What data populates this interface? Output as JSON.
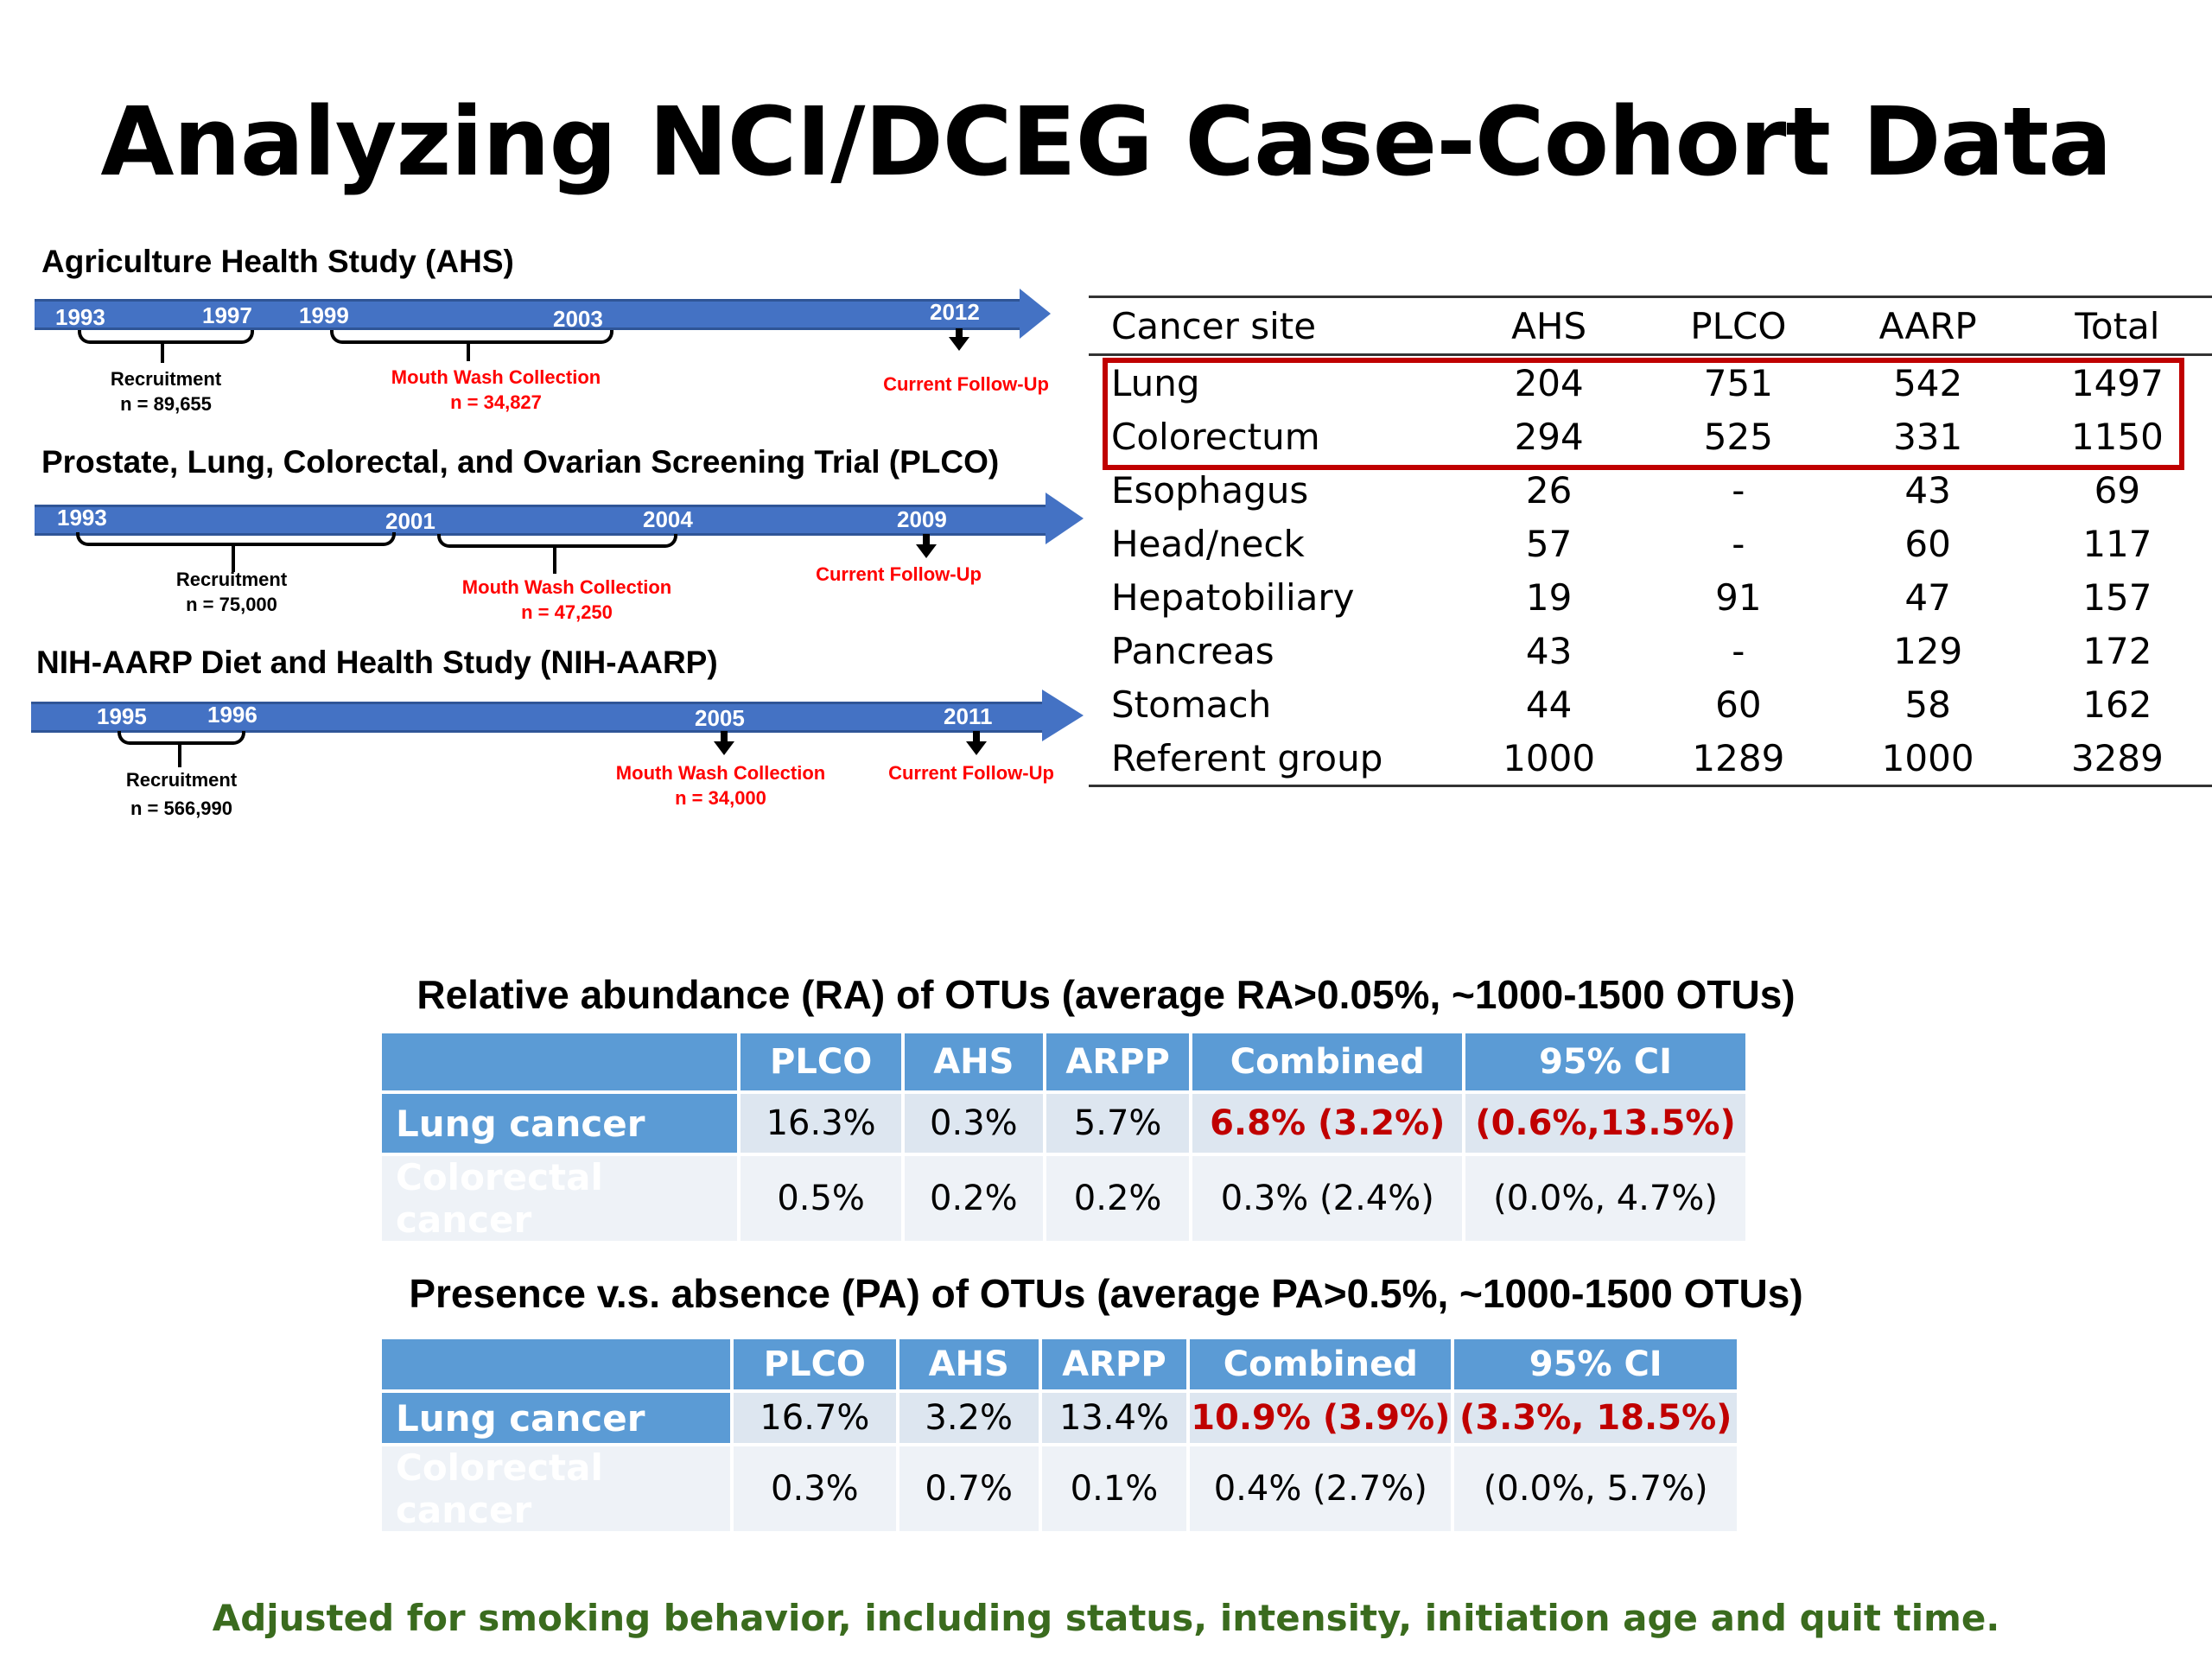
{
  "title": "Analyzing NCI/DCEG Case-Cohort Data",
  "studies": {
    "ahs": {
      "title": "Agriculture Health Study (AHS)",
      "years": [
        "1993",
        "1997",
        "1999",
        "2003",
        "2012"
      ],
      "recruitment": "Recruitment",
      "recruitment_n": "n = 89,655",
      "mouthwash": "Mouth Wash Collection",
      "mouthwash_n": "n = 34,827",
      "followup": "Current Follow-Up"
    },
    "plco": {
      "title": "Prostate, Lung, Colorectal, and Ovarian Screening Trial (PLCO)",
      "years": [
        "1993",
        "2001",
        "2004",
        "2009"
      ],
      "recruitment": "Recruitment",
      "recruitment_n": "n = 75,000",
      "mouthwash": "Mouth Wash Collection",
      "mouthwash_n": "n = 47,250",
      "followup": "Current Follow-Up"
    },
    "aarp": {
      "title": "NIH-AARP Diet and Health Study (NIH-AARP)",
      "years": [
        "1995",
        "1996",
        "2005",
        "2011"
      ],
      "recruitment": "Recruitment",
      "recruitment_n": "n = 566,990",
      "mouthwash": "Mouth Wash Collection",
      "mouthwash_n": "n = 34,000",
      "followup": "Current Follow-Up"
    }
  },
  "site_table": {
    "headers": [
      "Cancer site",
      "AHS",
      "PLCO",
      "AARP",
      "Total"
    ],
    "rows": [
      [
        "Lung",
        "204",
        "751",
        "542",
        "1497"
      ],
      [
        "Colorectum",
        "294",
        "525",
        "331",
        "1150"
      ],
      [
        "Esophagus",
        "26",
        "-",
        "43",
        "69"
      ],
      [
        "Head/neck",
        "57",
        "-",
        "60",
        "117"
      ],
      [
        "Hepatobiliary",
        "19",
        "91",
        "47",
        "157"
      ],
      [
        "Pancreas",
        "43",
        "-",
        "129",
        "172"
      ],
      [
        "Stomach",
        "44",
        "60",
        "58",
        "162"
      ],
      [
        "Referent group",
        "1000",
        "1289",
        "1000",
        "3289"
      ]
    ]
  },
  "ra": {
    "title": "Relative abundance (RA) of OTUs (average RA>0.05%, ~1000-1500 OTUs)",
    "headers": [
      "",
      "PLCO",
      "AHS",
      "ARPP",
      "Combined",
      "95% CI"
    ],
    "rows": [
      [
        "Lung cancer",
        "16.3%",
        "0.3%",
        "5.7%",
        "6.8% (3.2%)",
        "(0.6%,13.5%)"
      ],
      [
        "Colorectal  cancer",
        "0.5%",
        "0.2%",
        "0.2%",
        "0.3% (2.4%)",
        "(0.0%,  4.7%)"
      ]
    ]
  },
  "pa": {
    "title": "Presence v.s. absence (PA) of OTUs (average PA>0.5%, ~1000-1500 OTUs)",
    "headers": [
      "",
      "PLCO",
      "AHS",
      "ARPP",
      "Combined",
      "95% CI"
    ],
    "rows": [
      [
        "Lung cancer",
        "16.7%",
        "3.2%",
        "13.4%",
        "10.9% (3.9%)",
        "(3.3%, 18.5%)"
      ],
      [
        "Colorectal cancer",
        "0.3%",
        "0.7%",
        "0.1%",
        "0.4% (2.7%)",
        "(0.0%, 5.7%)"
      ]
    ]
  },
  "footer": "Adjusted for smoking behavior, including status, intensity, initiation age and quit time.",
  "colors": {
    "timeline": "#4472c4",
    "header_blue": "#5b9bd5",
    "highlight_red": "#c00000",
    "footer_green": "#3a6b1e"
  }
}
